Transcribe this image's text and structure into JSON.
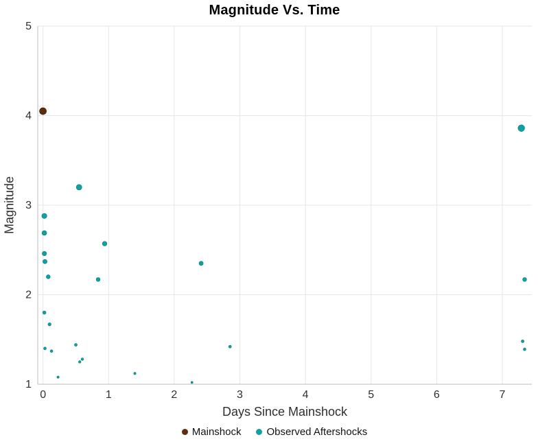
{
  "title": "Magnitude Vs. Time",
  "colors": {
    "grid": "#e6e6e6",
    "axis": "#bdbdbd",
    "tick_text": "#2f2f2f",
    "title_text": "#000000",
    "mainshock": "#5c2e0e",
    "mainshock_edge": "#3e1f09",
    "aftershock": "#10a2a2",
    "aftershock_edge": "#0b7f7f"
  },
  "chart_data": {
    "type": "scatter",
    "title": "Magnitude Vs. Time",
    "xlabel": "Days Since Mainshock",
    "ylabel": "Magnitude",
    "xlim": [
      -0.08,
      7.45
    ],
    "ylim": [
      1,
      5
    ],
    "x_ticks": [
      0,
      1,
      2,
      3,
      4,
      5,
      6,
      7
    ],
    "y_ticks": [
      1,
      2,
      3,
      4,
      5
    ],
    "grid": true,
    "legend_position": "bottom",
    "marker_size_rule": "radius_px = 1.5 + (magnitude - 1) * 1.15",
    "series": [
      {
        "name": "Mainshock",
        "color": "#5c2e0e",
        "edge_color": "#3e1f09",
        "points": [
          [
            0.0,
            4.05
          ]
        ]
      },
      {
        "name": "Observed Aftershocks",
        "color": "#10a2a2",
        "edge_color": "#0b7f7f",
        "points": [
          [
            0.02,
            2.88
          ],
          [
            0.02,
            2.69
          ],
          [
            0.02,
            2.46
          ],
          [
            0.03,
            2.37
          ],
          [
            0.02,
            1.8
          ],
          [
            0.03,
            1.4
          ],
          [
            0.08,
            2.2
          ],
          [
            0.1,
            1.67
          ],
          [
            0.13,
            1.37
          ],
          [
            0.23,
            1.08
          ],
          [
            0.5,
            1.44
          ],
          [
            0.55,
            3.2
          ],
          [
            0.56,
            1.25
          ],
          [
            0.6,
            1.28
          ],
          [
            0.84,
            2.17
          ],
          [
            0.94,
            2.57
          ],
          [
            1.4,
            1.12
          ],
          [
            2.27,
            1.02
          ],
          [
            2.41,
            2.35
          ],
          [
            2.85,
            1.42
          ],
          [
            7.29,
            3.86
          ],
          [
            7.34,
            2.17
          ],
          [
            7.31,
            1.48
          ],
          [
            7.34,
            1.39
          ]
        ]
      }
    ]
  }
}
